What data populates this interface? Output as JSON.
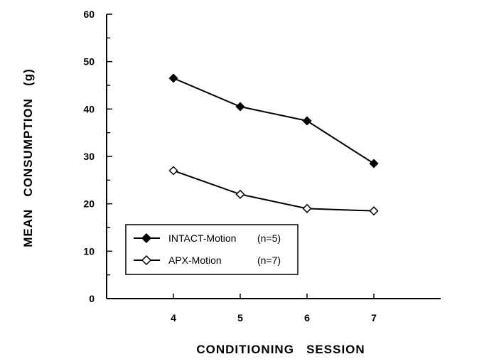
{
  "chart_data": {
    "type": "line",
    "title": "",
    "xlabel": "CONDITIONING   SESSION",
    "ylabel": "MEAN   CONSUMPTION   (g)",
    "x": [
      4,
      5,
      6,
      7
    ],
    "xlim": [
      3,
      8
    ],
    "ylim": [
      0,
      60
    ],
    "xticks": [
      "4",
      "5",
      "6",
      "7"
    ],
    "yticks": [
      "0",
      "10",
      "20",
      "30",
      "40",
      "50",
      "60"
    ],
    "grid": false,
    "legend_position": "bottom-left",
    "series": [
      {
        "name": "INTACT-Motion",
        "n_label": "(n=5)",
        "marker": "filled-diamond",
        "color": "#000000",
        "values": [
          46.5,
          40.5,
          37.5,
          28.5
        ]
      },
      {
        "name": "APX-Motion",
        "n_label": "(n=7)",
        "marker": "open-diamond",
        "color": "#000000",
        "values": [
          27,
          22,
          19,
          18.5
        ]
      }
    ]
  }
}
